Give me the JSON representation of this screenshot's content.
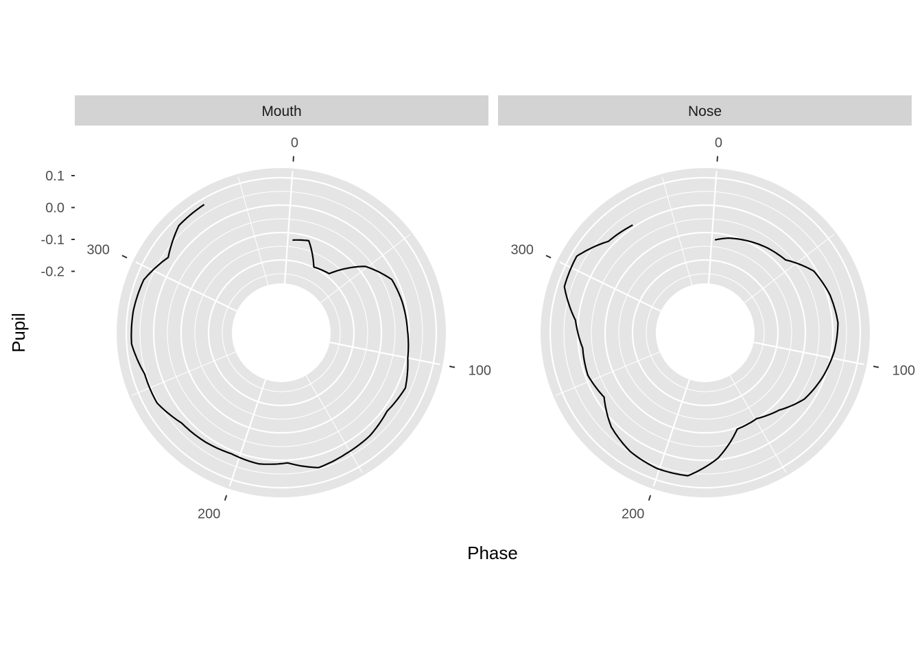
{
  "chart_data": {
    "type": "line",
    "coord": "polar",
    "xlabel": "Phase",
    "ylabel": "Pupil",
    "theta_ticks": [
      0,
      100,
      200,
      300
    ],
    "theta_tick_labels": [
      "0",
      "100",
      "200",
      "300"
    ],
    "theta_range": [
      -10,
      360
    ],
    "r_ticks": [
      0.1,
      0.0,
      -0.1,
      -0.2
    ],
    "r_tick_labels": [
      "0.1",
      "0.0",
      "-0.1",
      "-0.2"
    ],
    "r_range": [
      -0.285,
      0.135
    ],
    "colors": {
      "panel_bg": "#e5e5e5",
      "grid": "#ffffff",
      "strip_bg": "#d3d3d3",
      "line": "#000000",
      "text": "#4d4d4d",
      "title": "#000000"
    },
    "panels": [
      {
        "label": "Mouth",
        "series": [
          {
            "x": [
              3,
              13,
              23,
              36,
              49,
              62,
              74,
              87,
              100,
              113,
              126,
              139,
              152,
              165,
              178,
              191,
              204,
              217,
              230,
              243,
              256,
              269,
              282,
              295,
              308,
              321,
              334
            ],
            "y": [
              -0.125,
              -0.115,
              -0.198,
              -0.188,
              -0.075,
              -0.018,
              -0.01,
              -0.005,
              0.005,
              0.03,
              0.015,
              0.03,
              0.035,
              0.045,
              0.01,
              0.02,
              0.012,
              0.02,
              0.025,
              0.055,
              0.055,
              0.082,
              0.08,
              0.072,
              0.03,
              0.075,
              0.08
            ]
          }
        ]
      },
      {
        "label": "Nose",
        "series": [
          {
            "x": [
              2,
              10,
              20,
              33,
              45,
              58,
              71,
              84,
              97,
              110,
              123,
              136,
              149,
              162,
              175,
              188,
              201,
              214,
              227,
              240,
              253,
              266,
              279,
              292,
              305,
              318,
              331
            ],
            "y": [
              -0.125,
              -0.11,
              -0.098,
              -0.082,
              -0.07,
              -0.01,
              0.01,
              0.02,
              0.01,
              -0.008,
              -0.03,
              -0.075,
              -0.1,
              -0.095,
              -0.005,
              0.06,
              0.06,
              0.047,
              0.02,
              -0.028,
              -0.01,
              -0.015,
              0.01,
              0.075,
              0.08,
              0.02,
              0.008
            ]
          }
        ]
      }
    ]
  }
}
